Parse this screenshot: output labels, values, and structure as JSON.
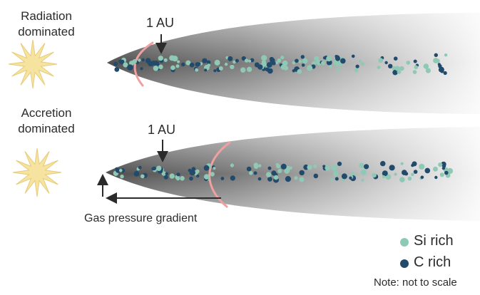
{
  "panels": [
    {
      "star_label_line1": "Radiation",
      "star_label_line2": "dominated",
      "au_label": "1 AU"
    },
    {
      "star_label_line1": "Accretion",
      "star_label_line2": "dominated",
      "au_label": "1 AU"
    }
  ],
  "gradient_label": "Gas pressure gradient",
  "legend": {
    "items": [
      {
        "label": "Si rich",
        "color": "#8fc9b6"
      },
      {
        "label": "C rich",
        "color": "#214a6b"
      }
    ],
    "note": "Note: not to scale"
  },
  "colors": {
    "star": "#f7e3a0",
    "snow_line": "#f0a0a0",
    "disk_dark": "#5a5a5a",
    "disk_light": "#f4f4f4",
    "si_grain": "#8fc9b6",
    "c_grain": "#214a6b"
  }
}
